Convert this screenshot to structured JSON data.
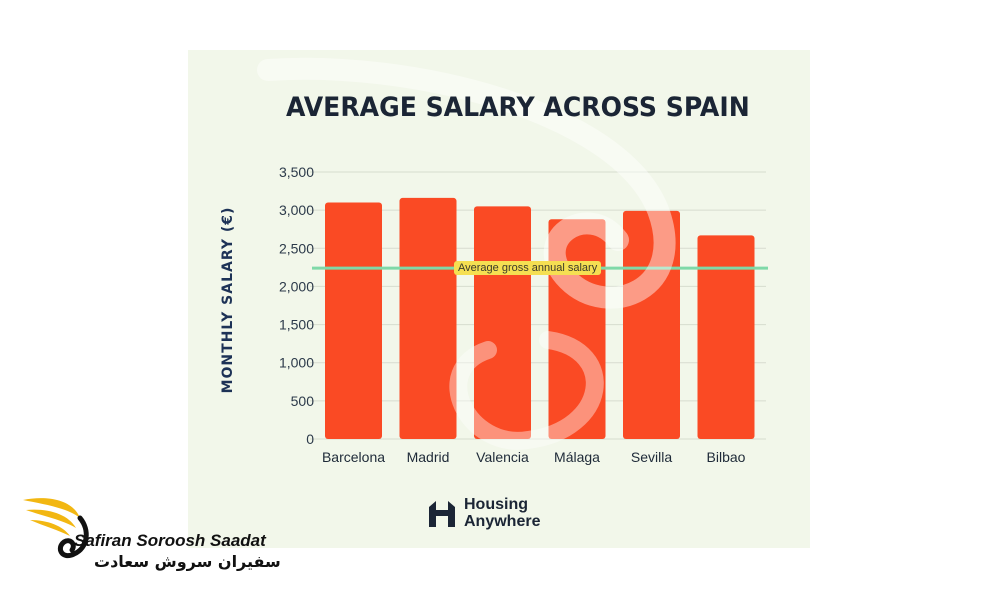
{
  "chart_data": {
    "type": "bar",
    "title": "AVERAGE SALARY ACROSS SPAIN",
    "xlabel": "",
    "ylabel": "MONTHLY SALARY (€)",
    "categories": [
      "Barcelona",
      "Madrid",
      "Valencia",
      "Málaga",
      "Sevilla",
      "Bilbao"
    ],
    "values": [
      3100,
      3160,
      3050,
      2880,
      2990,
      2670
    ],
    "ylim": [
      0,
      3500
    ],
    "yticks": [
      0,
      500,
      1000,
      1500,
      2000,
      2500,
      3000,
      3500
    ],
    "ytick_labels": [
      "0",
      "500",
      "1,000",
      "1,500",
      "2,000",
      "2,500",
      "3,000",
      "3,500"
    ],
    "grid": true,
    "reference_line": {
      "label": "Average gross annual salary",
      "value": 2240
    },
    "colors": {
      "bar": "#fa4a24",
      "reference_line": "#7fd9a8",
      "grid": "#d7dccf",
      "background": "#f2f7ea"
    }
  },
  "brand": {
    "line1": "Housing",
    "line2": "Anywhere"
  },
  "watermark": {
    "latin": "Safiran Soroosh Saadat",
    "persian": "سفیران سروش سعادت"
  }
}
